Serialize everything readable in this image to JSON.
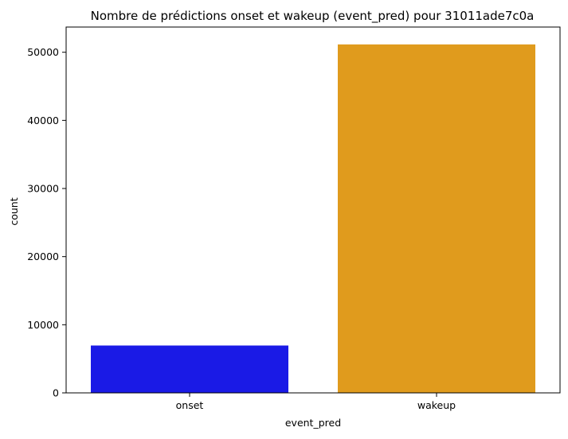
{
  "chart_data": {
    "type": "bar",
    "title": "Nombre de prédictions onset et wakeup (event_pred) pour 31011ade7c0a",
    "xlabel": "event_pred",
    "ylabel": "count",
    "categories": [
      "onset",
      "wakeup"
    ],
    "values": [
      6950,
      51150
    ],
    "colors": [
      "#1a1ae6",
      "#e09b1d"
    ],
    "ylim": [
      0,
      53700
    ],
    "yticks": [
      0,
      10000,
      20000,
      30000,
      40000,
      50000
    ],
    "grid": false,
    "legend": "none"
  }
}
